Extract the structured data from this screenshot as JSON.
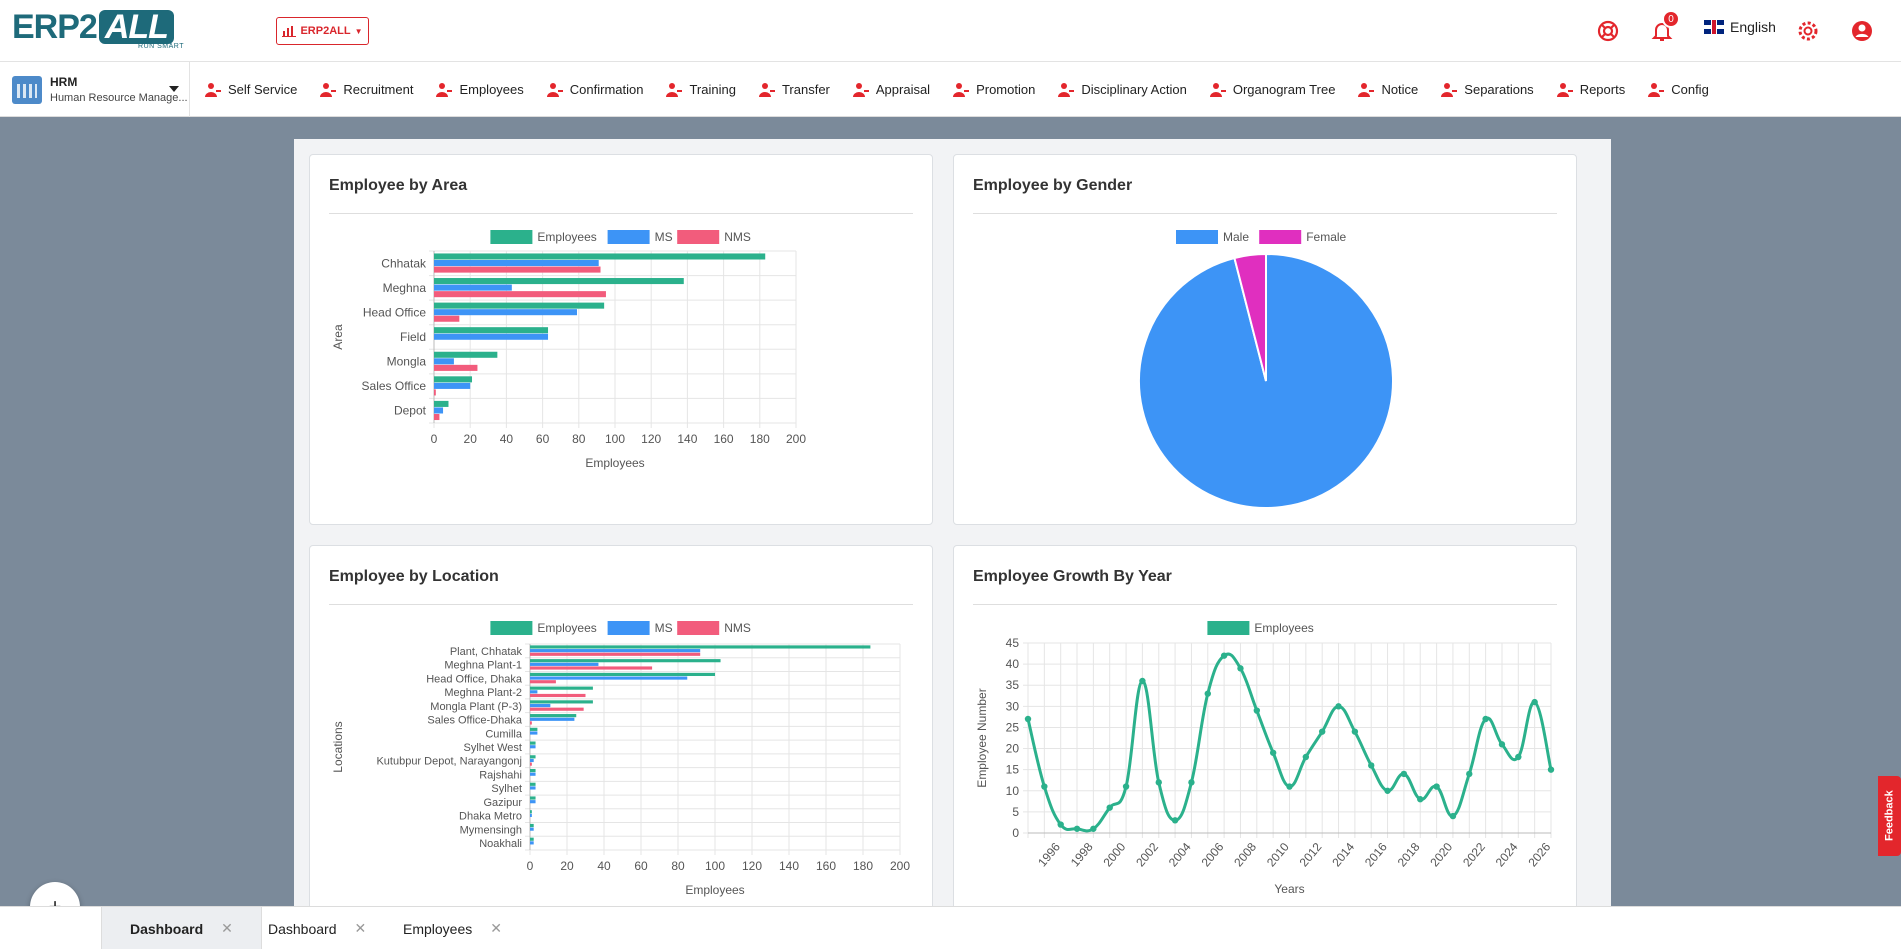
{
  "logo": {
    "part1": "ERP2",
    "part2": "ALL",
    "tagline": "RUN SMART"
  },
  "company": {
    "label": "ERP2ALL"
  },
  "header": {
    "notification_count": "0",
    "language": "English"
  },
  "module": {
    "title": "HRM",
    "subtitle": "Human Resource Manage..."
  },
  "menu": [
    {
      "label": "Self Service",
      "icon": "self-service-icon"
    },
    {
      "label": "Recruitment",
      "icon": "recruitment-icon"
    },
    {
      "label": "Employees",
      "icon": "employees-icon"
    },
    {
      "label": "Confirmation",
      "icon": "confirmation-icon"
    },
    {
      "label": "Training",
      "icon": "training-icon"
    },
    {
      "label": "Transfer",
      "icon": "transfer-icon"
    },
    {
      "label": "Appraisal",
      "icon": "appraisal-icon"
    },
    {
      "label": "Promotion",
      "icon": "promotion-icon"
    },
    {
      "label": "Disciplinary Action",
      "icon": "scales-icon"
    },
    {
      "label": "Organogram Tree",
      "icon": "organogram-icon"
    },
    {
      "label": "Notice",
      "icon": "megaphone-icon"
    },
    {
      "label": "Separations",
      "icon": "separation-icon"
    },
    {
      "label": "Reports",
      "icon": "bar-chart-icon"
    },
    {
      "label": "Config",
      "icon": "gear-icon"
    }
  ],
  "cards": {
    "area": {
      "title": "Employee by Area"
    },
    "gender": {
      "title": "Employee by Gender"
    },
    "location": {
      "title": "Employee by Location"
    },
    "growth": {
      "title": "Employee Growth By Year"
    }
  },
  "colors": {
    "employees": "#2bb18c",
    "ms": "#3d94f6",
    "nms": "#f25c7c",
    "male": "#3d94f6",
    "female": "#e02fbf",
    "accent": "#e3262c"
  },
  "chart_data": [
    {
      "type": "bar",
      "orientation": "horizontal",
      "title": "Employee by Area",
      "xlabel": "Employees",
      "ylabel": "Area",
      "xlim": [
        0,
        200
      ],
      "xticks": [
        0,
        20,
        40,
        60,
        80,
        100,
        120,
        140,
        160,
        180,
        200
      ],
      "legend": "top",
      "grid": true,
      "categories": [
        "Chhatak",
        "Meghna",
        "Head Office",
        "Field",
        "Mongla",
        "Sales Office",
        "Depot"
      ],
      "series": [
        {
          "name": "Employees",
          "values": [
            183,
            138,
            94,
            63,
            35,
            21,
            8
          ]
        },
        {
          "name": "MS",
          "values": [
            91,
            43,
            79,
            63,
            11,
            20,
            5
          ]
        },
        {
          "name": "NMS",
          "values": [
            92,
            95,
            14,
            0,
            24,
            1,
            3
          ]
        }
      ]
    },
    {
      "type": "pie",
      "title": "Employee by Gender",
      "legend": "top",
      "categories": [
        "Male",
        "Female"
      ],
      "values": [
        96,
        4
      ]
    },
    {
      "type": "bar",
      "orientation": "horizontal",
      "title": "Employee by Location",
      "xlabel": "Employees",
      "ylabel": "Locations",
      "xlim": [
        0,
        200
      ],
      "xticks": [
        0,
        20,
        40,
        60,
        80,
        100,
        120,
        140,
        160,
        180,
        200
      ],
      "legend": "top",
      "grid": true,
      "categories": [
        "Plant, Chhatak",
        "Meghna Plant-1",
        "Head Office, Dhaka",
        "Meghna Plant-2",
        "Mongla Plant (P-3)",
        "Sales Office-Dhaka",
        "Cumilla",
        "Sylhet West",
        "Kutubpur Depot, Narayangonj",
        "Rajshahi",
        "Sylhet",
        "Gazipur",
        "Dhaka Metro",
        "Mymensingh",
        "Noakhali"
      ],
      "series": [
        {
          "name": "Employees",
          "values": [
            184,
            103,
            100,
            34,
            34,
            25,
            4,
            3,
            3,
            3,
            3,
            3,
            1,
            2,
            2
          ]
        },
        {
          "name": "MS",
          "values": [
            92,
            37,
            85,
            4,
            11,
            24,
            4,
            3,
            2,
            3,
            3,
            3,
            1,
            2,
            2
          ]
        },
        {
          "name": "NMS",
          "values": [
            92,
            66,
            14,
            30,
            29,
            1,
            0,
            0,
            1,
            0,
            0,
            0,
            0,
            0,
            0
          ]
        }
      ]
    },
    {
      "type": "line",
      "title": "Employee Growth By Year",
      "xlabel": "Years",
      "ylabel": "Employee Number",
      "ylim": [
        0,
        45
      ],
      "yticks": [
        0,
        5,
        10,
        15,
        20,
        25,
        30,
        35,
        40,
        45
      ],
      "xticks": [
        1996,
        1998,
        2000,
        2002,
        2004,
        2006,
        2008,
        2010,
        2012,
        2014,
        2016,
        2018,
        2020,
        2022,
        2024,
        2026
      ],
      "legend": "top",
      "grid": true,
      "series": [
        {
          "name": "Employees",
          "x": [
            1994,
            1995,
            1996,
            1997,
            1998,
            1999,
            2000,
            2001,
            2002,
            2003,
            2004,
            2005,
            2006,
            2007,
            2008,
            2009,
            2010,
            2011,
            2012,
            2013,
            2014,
            2015,
            2016,
            2017,
            2018,
            2019,
            2020,
            2021,
            2022,
            2023,
            2024,
            2025,
            2026
          ],
          "y": [
            27,
            11,
            2,
            1,
            1,
            6,
            11,
            36,
            12,
            3,
            12,
            33,
            42,
            39,
            29,
            19,
            11,
            18,
            24,
            30,
            24,
            16,
            10,
            14,
            8,
            11,
            4,
            14,
            27,
            21,
            18,
            31,
            15
          ]
        }
      ]
    }
  ],
  "tabs": [
    {
      "label": "Dashboard",
      "active": true
    },
    {
      "label": "Dashboard",
      "active": false
    },
    {
      "label": "Employees",
      "active": false
    }
  ],
  "fab": {
    "label": "+"
  },
  "feedback": {
    "label": "Feedback"
  }
}
